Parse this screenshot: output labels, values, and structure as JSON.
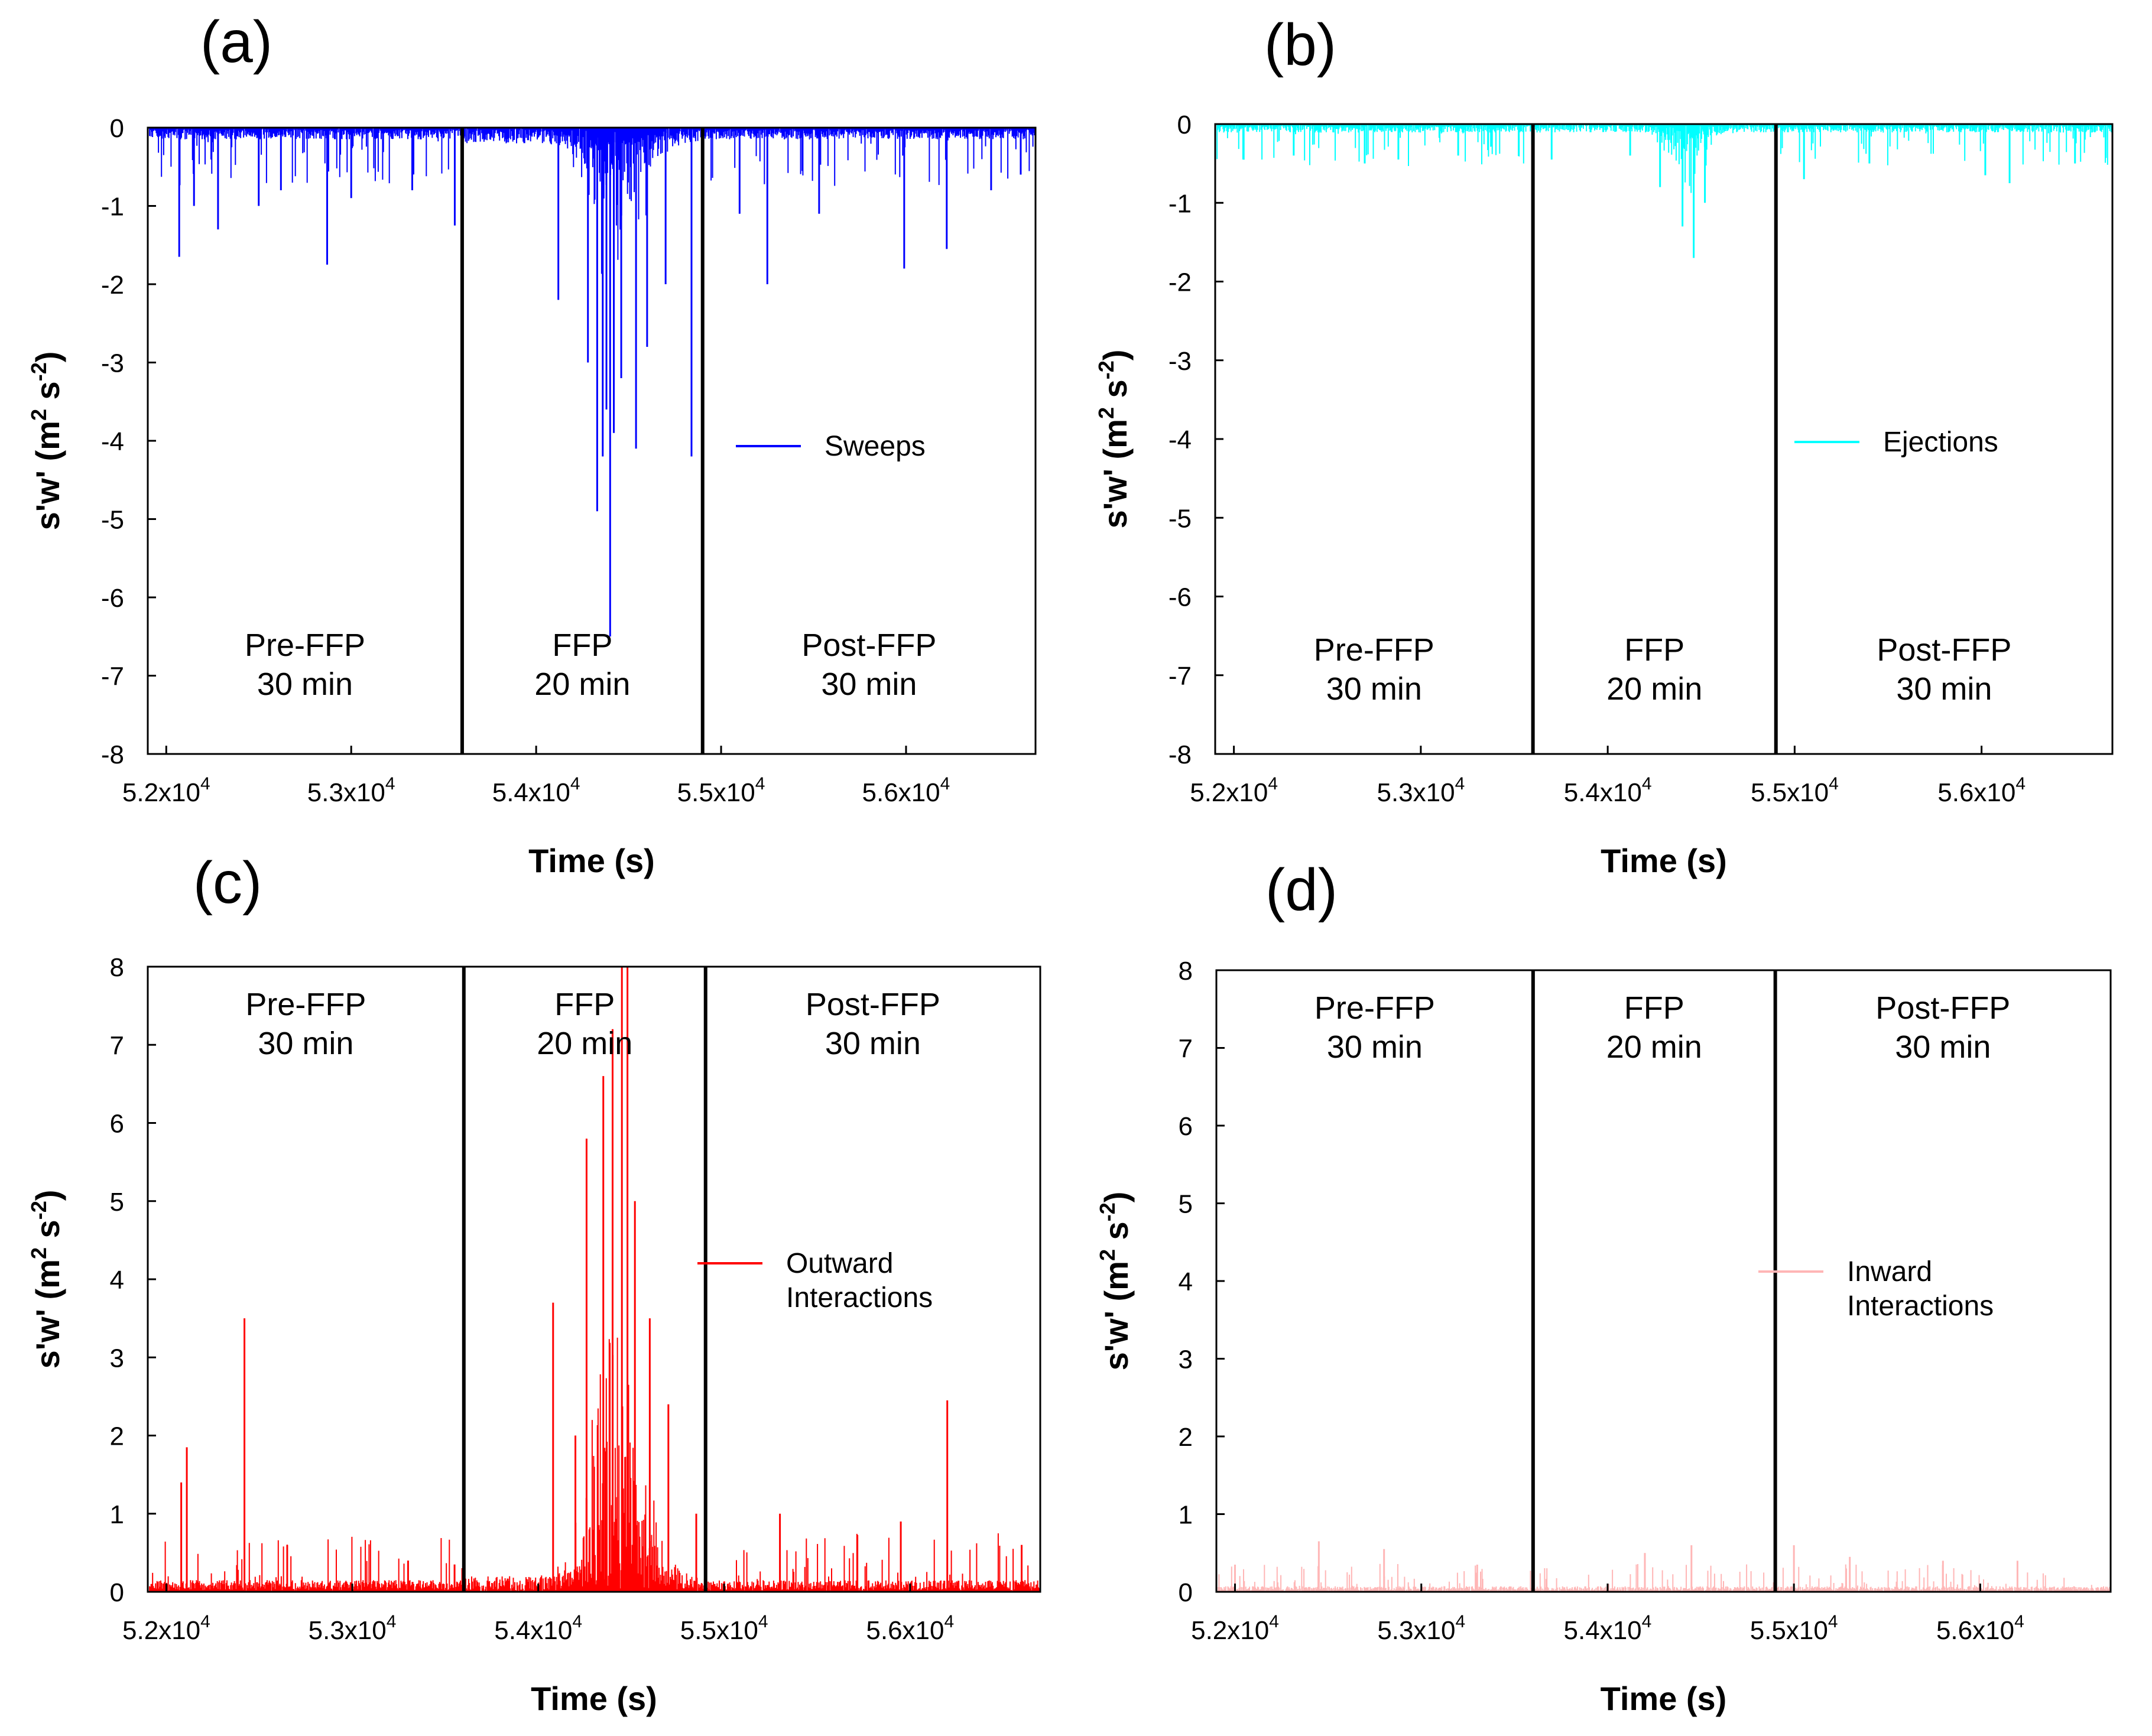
{
  "figure": {
    "x_axis_label": "Time (s)",
    "y_axis_label": "s'w' (m",
    "y_axis_sup_1": "2",
    "y_axis_mid": " s",
    "y_axis_sup_2": "-2",
    "y_axis_end": ")",
    "x_tick_base": "x10",
    "x_tick_exp": "4",
    "phases": [
      {
        "name": "Pre-FFP",
        "duration": "30 min"
      },
      {
        "name": "FFP",
        "duration": "20 min"
      },
      {
        "name": "Post-FFP",
        "duration": "30 min"
      }
    ]
  },
  "chart_data": [
    {
      "panel": "(a)",
      "type": "bar",
      "series_name": "Sweeps",
      "color": "#0000ff",
      "xlim": [
        51900,
        56700
      ],
      "ylim": [
        -8,
        0
      ],
      "y_ticks": [
        0,
        -1,
        -2,
        -3,
        -4,
        -5,
        -6,
        -7,
        -8
      ],
      "x_ticks": [
        52000,
        53000,
        54000,
        55000,
        56000
      ],
      "x_tick_labels": [
        "5.2",
        "5.3",
        "5.4",
        "5.5",
        "5.6"
      ],
      "phase_boundaries": [
        53600,
        54900
      ],
      "legend_position": "middle-right",
      "peaks": [
        {
          "x": 52070,
          "y": -1.65
        },
        {
          "x": 52150,
          "y": -1.0
        },
        {
          "x": 52280,
          "y": -1.3
        },
        {
          "x": 52500,
          "y": -1.0
        },
        {
          "x": 52620,
          "y": -0.8
        },
        {
          "x": 52870,
          "y": -1.75
        },
        {
          "x": 53000,
          "y": -0.9
        },
        {
          "x": 53330,
          "y": -0.8
        },
        {
          "x": 53560,
          "y": -1.25
        },
        {
          "x": 54120,
          "y": -2.2
        },
        {
          "x": 54280,
          "y": -3.0
        },
        {
          "x": 54330,
          "y": -4.9
        },
        {
          "x": 54360,
          "y": -4.2
        },
        {
          "x": 54380,
          "y": -3.6
        },
        {
          "x": 54400,
          "y": -6.5
        },
        {
          "x": 54420,
          "y": -3.9
        },
        {
          "x": 54460,
          "y": -3.2
        },
        {
          "x": 54540,
          "y": -4.1
        },
        {
          "x": 54600,
          "y": -2.8
        },
        {
          "x": 54700,
          "y": -2.0
        },
        {
          "x": 54840,
          "y": -4.2
        },
        {
          "x": 55100,
          "y": -1.1
        },
        {
          "x": 55250,
          "y": -2.0
        },
        {
          "x": 55530,
          "y": -1.1
        },
        {
          "x": 55990,
          "y": -1.8
        },
        {
          "x": 56220,
          "y": -1.55
        },
        {
          "x": 56460,
          "y": -0.8
        },
        {
          "x": 56620,
          "y": -0.6
        }
      ]
    },
    {
      "panel": "(b)",
      "type": "bar",
      "series_name": "Ejections",
      "color": "#00ffff",
      "xlim": [
        51900,
        56700
      ],
      "ylim": [
        -8,
        0
      ],
      "y_ticks": [
        0,
        -1,
        -2,
        -3,
        -4,
        -5,
        -6,
        -7,
        -8
      ],
      "x_ticks": [
        52000,
        53000,
        54000,
        55000,
        56000
      ],
      "x_tick_labels": [
        "5.2",
        "5.3",
        "5.4",
        "5.5",
        "5.6"
      ],
      "phase_boundaries": [
        53600,
        54900
      ],
      "legend_position": "middle-right",
      "peaks": [
        {
          "x": 52050,
          "y": -0.45
        },
        {
          "x": 52320,
          "y": -0.4
        },
        {
          "x": 52700,
          "y": -0.5
        },
        {
          "x": 52880,
          "y": -0.45
        },
        {
          "x": 53200,
          "y": -0.4
        },
        {
          "x": 53700,
          "y": -0.45
        },
        {
          "x": 54120,
          "y": -0.4
        },
        {
          "x": 54280,
          "y": -0.8
        },
        {
          "x": 54400,
          "y": -1.3
        },
        {
          "x": 54460,
          "y": -1.7
        },
        {
          "x": 54520,
          "y": -1.0
        },
        {
          "x": 55050,
          "y": -0.7
        },
        {
          "x": 55400,
          "y": -0.5
        },
        {
          "x": 56020,
          "y": -0.65
        },
        {
          "x": 56150,
          "y": -0.75
        },
        {
          "x": 56500,
          "y": -0.5
        }
      ]
    },
    {
      "panel": "(c)",
      "type": "bar",
      "series_name": "Outward Interactions",
      "series_name_line1": "Outward",
      "series_name_line2": "Interactions",
      "color": "#ff0000",
      "xlim": [
        51900,
        56700
      ],
      "ylim": [
        0,
        8
      ],
      "y_ticks": [
        0,
        1,
        2,
        3,
        4,
        5,
        6,
        7,
        8
      ],
      "x_ticks": [
        52000,
        53000,
        54000,
        55000,
        56000
      ],
      "x_tick_labels": [
        "5.2",
        "5.3",
        "5.4",
        "5.5",
        "5.6"
      ],
      "phase_boundaries": [
        53600,
        54900
      ],
      "legend_position": "middle-right",
      "peaks": [
        {
          "x": 52080,
          "y": 1.4
        },
        {
          "x": 52110,
          "y": 1.85
        },
        {
          "x": 52420,
          "y": 3.5
        },
        {
          "x": 52650,
          "y": 0.6
        },
        {
          "x": 53300,
          "y": 0.4
        },
        {
          "x": 53550,
          "y": 0.35
        },
        {
          "x": 54080,
          "y": 3.7
        },
        {
          "x": 54200,
          "y": 2.0
        },
        {
          "x": 54260,
          "y": 5.8
        },
        {
          "x": 54350,
          "y": 6.6
        },
        {
          "x": 54400,
          "y": 7.2
        },
        {
          "x": 54450,
          "y": 8.0
        },
        {
          "x": 54480,
          "y": 8.0
        },
        {
          "x": 54520,
          "y": 5.0
        },
        {
          "x": 54600,
          "y": 3.5
        },
        {
          "x": 54700,
          "y": 2.4
        },
        {
          "x": 54850,
          "y": 1.0
        },
        {
          "x": 55300,
          "y": 1.0
        },
        {
          "x": 55950,
          "y": 0.9
        },
        {
          "x": 56200,
          "y": 2.45
        },
        {
          "x": 56600,
          "y": 0.6
        }
      ]
    },
    {
      "panel": "(d)",
      "type": "bar",
      "series_name": "Inward Interactions",
      "series_name_line1": "Inward",
      "series_name_line2": "Interactions",
      "color": "#ffb6b6",
      "xlim": [
        51900,
        56700
      ],
      "ylim": [
        0,
        8
      ],
      "y_ticks": [
        0,
        1,
        2,
        3,
        4,
        5,
        6,
        7,
        8
      ],
      "x_ticks": [
        52000,
        53000,
        54000,
        55000,
        56000
      ],
      "x_tick_labels": [
        "5.2",
        "5.3",
        "5.4",
        "5.5",
        "5.6"
      ],
      "phase_boundaries": [
        53600,
        54900
      ],
      "legend_position": "middle-right",
      "peaks": [
        {
          "x": 52000,
          "y": 0.35
        },
        {
          "x": 52450,
          "y": 0.65
        },
        {
          "x": 52800,
          "y": 0.55
        },
        {
          "x": 53300,
          "y": 0.35
        },
        {
          "x": 54200,
          "y": 0.5
        },
        {
          "x": 54450,
          "y": 0.6
        },
        {
          "x": 55000,
          "y": 0.6
        },
        {
          "x": 55300,
          "y": 0.45
        },
        {
          "x": 55800,
          "y": 0.4
        },
        {
          "x": 56200,
          "y": 0.4
        },
        {
          "x": 56700,
          "y": 0.6
        }
      ]
    }
  ]
}
